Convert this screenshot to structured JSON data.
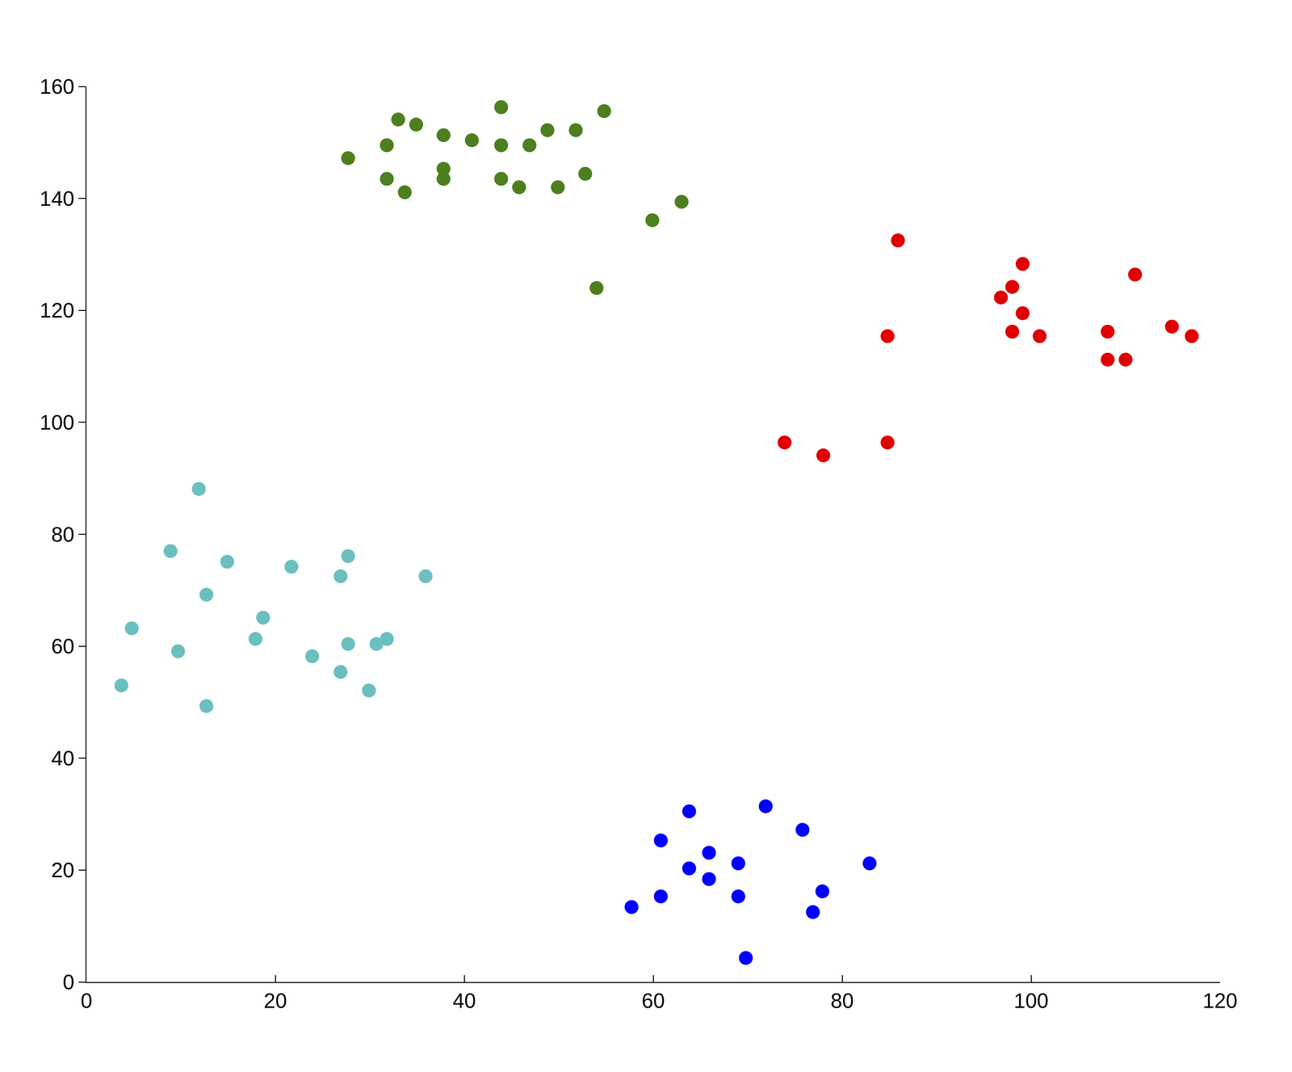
{
  "chart_data": {
    "type": "scatter",
    "marker": "circle",
    "grid": false,
    "xlim": [
      0,
      120
    ],
    "xticks": [
      0,
      20,
      40,
      60,
      80,
      100,
      120
    ],
    "ylim": [
      0,
      160
    ],
    "yticks": [
      0,
      20,
      40,
      60,
      80,
      100,
      120,
      140,
      160
    ],
    "series": [
      {
        "color": "#4d7f1f",
        "x": [
          27.7,
          31.8,
          33.0,
          34.9,
          31.8,
          33.7,
          37.8,
          37.8,
          37.8,
          40.8,
          43.9,
          43.9,
          43.9,
          45.8,
          46.9,
          48.8,
          49.9,
          51.8,
          52.8,
          54.8,
          59.9,
          63.0,
          54.0
        ],
        "y": [
          147.2,
          149.5,
          154.1,
          153.2,
          143.5,
          141.1,
          151.3,
          145.3,
          143.5,
          150.4,
          156.3,
          149.5,
          143.5,
          142.0,
          149.5,
          152.2,
          142.0,
          152.2,
          144.4,
          155.6,
          136.1,
          139.4,
          124.0
        ]
      },
      {
        "color": "#e00000",
        "x": [
          85.9,
          99.1,
          98.0,
          96.8,
          99.1,
          111.0,
          84.8,
          98.0,
          100.9,
          108.1,
          114.9,
          117.0,
          108.1,
          110.0,
          73.9,
          78.0,
          84.8
        ],
        "y": [
          132.5,
          128.3,
          124.2,
          122.3,
          119.5,
          126.4,
          115.4,
          116.2,
          115.4,
          116.2,
          117.1,
          115.4,
          111.2,
          111.2,
          96.4,
          94.1,
          96.4
        ]
      },
      {
        "color": "#6cbfbf",
        "x": [
          11.9,
          8.9,
          14.9,
          21.7,
          26.9,
          27.7,
          35.9,
          12.7,
          18.7,
          4.8,
          17.9,
          27.7,
          30.7,
          31.8,
          9.7,
          23.9,
          26.9,
          3.7,
          29.9,
          12.7
        ],
        "y": [
          88.1,
          77.0,
          75.1,
          74.2,
          72.5,
          76.1,
          72.5,
          69.2,
          65.1,
          63.2,
          61.3,
          60.4,
          60.4,
          61.3,
          59.1,
          58.2,
          55.4,
          53.0,
          52.1,
          49.3
        ]
      },
      {
        "color": "#0000ff",
        "x": [
          63.8,
          71.9,
          75.8,
          60.8,
          65.9,
          63.8,
          69.0,
          82.9,
          65.9,
          77.9,
          60.8,
          69.0,
          57.7,
          76.9,
          69.8
        ],
        "y": [
          30.5,
          31.4,
          27.2,
          25.3,
          23.1,
          20.3,
          21.2,
          21.2,
          18.4,
          16.2,
          15.3,
          15.3,
          13.4,
          12.5,
          4.3
        ]
      }
    ]
  }
}
